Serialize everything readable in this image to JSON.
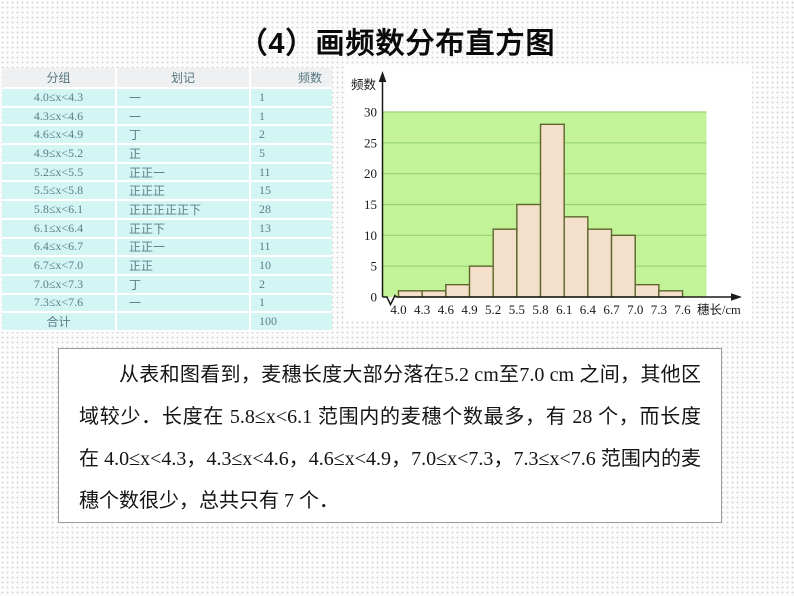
{
  "slide": {
    "title": "（4）画频数分布直方图"
  },
  "table": {
    "headers": [
      "分组",
      "划记",
      "频数"
    ],
    "rows": [
      [
        "4.0≤x<4.3",
        "一",
        "1"
      ],
      [
        "4.3≤x<4.6",
        "一",
        "1"
      ],
      [
        "4.6≤x<4.9",
        "丁",
        "2"
      ],
      [
        "4.9≤x<5.2",
        "正",
        "5"
      ],
      [
        "5.2≤x<5.5",
        "正正一",
        "11"
      ],
      [
        "5.5≤x<5.8",
        "正正正",
        "15"
      ],
      [
        "5.8≤x<6.1",
        "正正正正正下",
        "28"
      ],
      [
        "6.1≤x<6.4",
        "正正下",
        "13"
      ],
      [
        "6.4≤x<6.7",
        "正正一",
        "11"
      ],
      [
        "6.7≤x<7.0",
        "正正",
        "10"
      ],
      [
        "7.0≤x<7.3",
        "丁",
        "2"
      ],
      [
        "7.3≤x<7.6",
        "一",
        "1"
      ]
    ],
    "total": {
      "label": "合计",
      "value": "100"
    }
  },
  "chart_data": {
    "type": "bar",
    "title": "",
    "ylabel": "频数",
    "xlabel": "穗长/cm",
    "bin_edges": [
      "4.0",
      "4.3",
      "4.6",
      "4.9",
      "5.2",
      "5.5",
      "5.8",
      "6.1",
      "6.4",
      "6.7",
      "7.0",
      "7.3",
      "7.6"
    ],
    "values": [
      1,
      1,
      2,
      5,
      11,
      15,
      28,
      13,
      11,
      10,
      2,
      1
    ],
    "ylim": [
      0,
      30
    ],
    "ytick_step": 5,
    "grid": true,
    "legend_position": "none",
    "plot_bg": "#c3f398",
    "grid_color": "#97d373",
    "bar_fill": "#f4e0ca",
    "bar_border": "#5d652c",
    "axis_color": "#1a1a1a"
  },
  "paragraph": {
    "text": "从表和图看到，麦穗长度大部分落在5.2 cm至7.0 cm 之间，其他区域较少．长度在 5.8≤x<6.1 范围内的麦穗个数最多，有 28 个，而长度在 4.0≤x<4.3，4.3≤x<4.6，4.6≤x<4.9，7.0≤x<7.3，7.3≤x<7.6 范围内的麦穗个数很少，总共只有 7 个．"
  }
}
